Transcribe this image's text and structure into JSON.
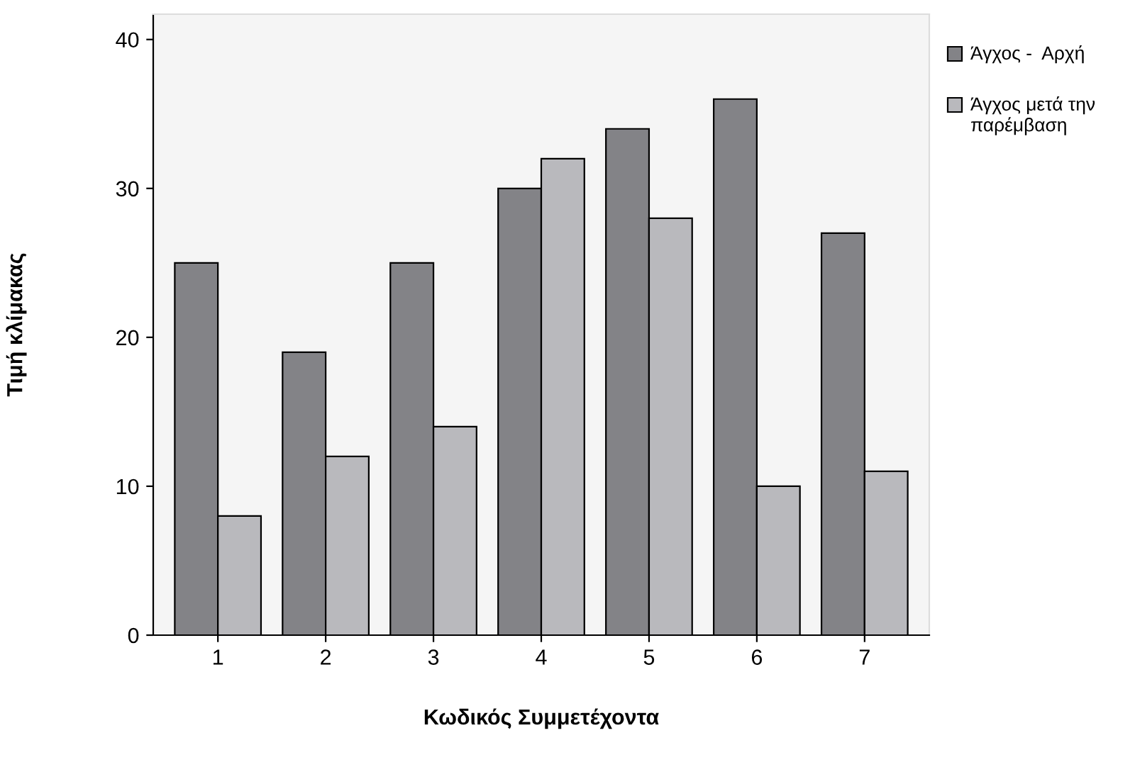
{
  "chart_data": {
    "type": "bar",
    "xlabel": "Κωδικός Συμμετέχοντα",
    "ylabel": "Τιμή κλίμακας",
    "categories": [
      "1",
      "2",
      "3",
      "4",
      "5",
      "6",
      "7"
    ],
    "series": [
      {
        "name": "Άγχος -  Αρχή",
        "color": "#838387",
        "values": [
          25,
          19,
          25,
          30,
          34,
          36,
          27
        ]
      },
      {
        "name": "Άγχος μετά την παρέμβαση",
        "color": "#b9b9bd",
        "values": [
          8,
          12,
          14,
          32,
          28,
          10,
          11
        ]
      }
    ],
    "ylim": [
      0,
      41.7
    ],
    "yticks": [
      0,
      10,
      20,
      30,
      40
    ],
    "grid": false,
    "legend": "top right"
  }
}
